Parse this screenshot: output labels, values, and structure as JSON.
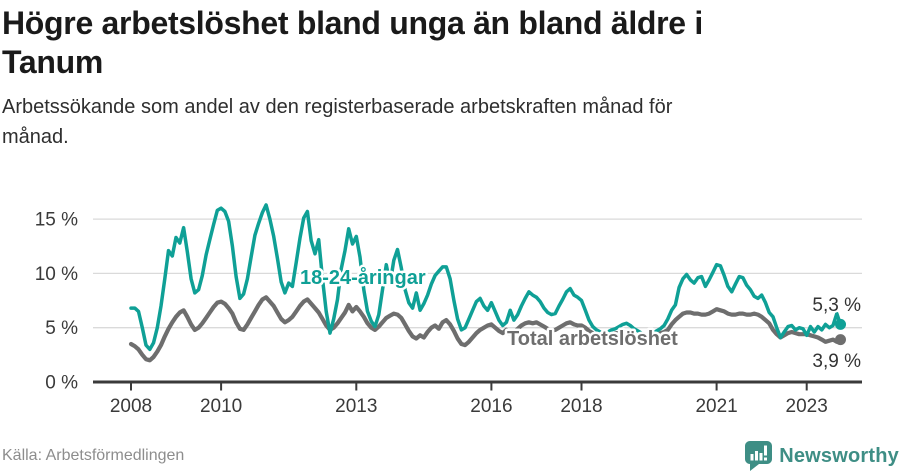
{
  "colors": {
    "young": "#0fa096",
    "total": "#6e6e6e",
    "grid": "#dadada",
    "axis": "#3a3a3a",
    "end_label_text": "#333333",
    "title_text": "#1a1a1a",
    "subtitle_text": "#2e2e2e",
    "source_text": "#8d8d8d",
    "brand": "#3e8e85"
  },
  "footer": {
    "source": "Källa: Arbetsförmedlingen",
    "brand": "Newsworthy",
    "brand_icon": "newsworthy-chart-bubble-icon"
  },
  "chart_data": {
    "type": "line",
    "title": "Högre arbetslöshet bland unga än bland äldre i Tanum",
    "title_lines": [
      "Högre arbetslöshet bland unga än bland äldre i",
      "Tanum"
    ],
    "subtitle": "Arbetssökande som andel av den registerbaserade arbetskraften månad för månad.",
    "subtitle_lines": [
      "Arbetssökande som andel av den registerbaserade arbetskraften månad för",
      "månad."
    ],
    "x_unit": "month",
    "x_start": {
      "year": 2008,
      "month": 1
    },
    "x_end": {
      "year": 2023,
      "month": 10
    },
    "xticks": [
      2008,
      2010,
      2013,
      2016,
      2018,
      2021,
      2023
    ],
    "yticks": [
      0,
      5,
      10,
      15
    ],
    "ytick_suffix": " %",
    "ylim": [
      0,
      17
    ],
    "grid": "horizontal-only",
    "legend_position": "inline-labels",
    "series": [
      {
        "name": "18-24-åringar",
        "color": "#0fa096",
        "end_label": "5,3 %",
        "last_value": 5.3,
        "values": [
          6.8,
          6.8,
          6.5,
          5.0,
          3.4,
          3.0,
          3.6,
          5.0,
          7.0,
          9.5,
          12.1,
          11.6,
          13.3,
          12.8,
          14.2,
          12.0,
          9.5,
          8.2,
          8.5,
          9.8,
          11.7,
          13.1,
          14.5,
          15.8,
          16.0,
          15.7,
          14.8,
          12.5,
          9.7,
          7.7,
          8.1,
          9.5,
          11.5,
          13.5,
          14.6,
          15.6,
          16.3,
          15.0,
          13.4,
          11.4,
          9.2,
          8.2,
          9.1,
          8.8,
          11.0,
          13.2,
          15.1,
          15.7,
          13.0,
          11.8,
          13.1,
          9.5,
          6.5,
          4.5,
          5.8,
          7.6,
          10.4,
          12.1,
          14.1,
          12.7,
          13.4,
          11.5,
          8.5,
          6.5,
          5.6,
          5.1,
          6.2,
          8.5,
          10.8,
          9.0,
          11.2,
          12.2,
          10.5,
          8.5,
          7.3,
          6.8,
          8.2,
          6.6,
          7.2,
          8.0,
          9.0,
          9.8,
          10.2,
          10.6,
          10.6,
          9.5,
          7.5,
          5.8,
          4.8,
          5.0,
          5.8,
          6.6,
          7.4,
          7.7,
          7.0,
          6.6,
          7.3,
          6.5,
          5.7,
          5.2,
          5.5,
          6.6,
          5.7,
          6.2,
          7.0,
          7.7,
          8.3,
          8.0,
          7.8,
          7.4,
          6.8,
          6.4,
          6.2,
          6.3,
          7.0,
          7.6,
          8.3,
          8.6,
          8.0,
          7.8,
          7.5,
          6.6,
          5.7,
          5.1,
          4.8,
          4.6,
          4.5,
          4.6,
          4.8,
          4.9,
          5.1,
          5.3,
          5.4,
          5.2,
          4.9,
          4.7,
          4.5,
          4.3,
          4.4,
          4.5,
          4.7,
          4.9,
          5.2,
          5.8,
          6.6,
          7.1,
          8.7,
          9.5,
          9.9,
          9.4,
          9.1,
          9.6,
          9.7,
          8.8,
          9.4,
          10.1,
          10.8,
          10.7,
          9.8,
          8.8,
          8.3,
          9.0,
          9.7,
          9.6,
          8.9,
          8.5,
          7.9,
          7.7,
          8.0,
          7.3,
          6.4,
          6.0,
          5.0,
          4.1,
          4.6,
          5.1,
          5.2,
          4.8,
          5.0,
          4.9,
          4.3,
          5.1,
          4.6,
          5.1,
          4.8,
          5.3,
          5.0,
          5.2,
          6.3,
          5.3
        ]
      },
      {
        "name": "Total arbetslöshet",
        "color": "#6e6e6e",
        "end_label": "3,9 %",
        "last_value": 3.9,
        "values": [
          3.5,
          3.3,
          3.0,
          2.5,
          2.1,
          2.0,
          2.3,
          2.8,
          3.4,
          4.2,
          4.9,
          5.5,
          6.0,
          6.4,
          6.6,
          6.0,
          5.3,
          4.8,
          5.0,
          5.4,
          5.9,
          6.4,
          6.9,
          7.3,
          7.4,
          7.2,
          6.8,
          6.3,
          5.5,
          4.9,
          4.8,
          5.3,
          5.9,
          6.5,
          7.1,
          7.6,
          7.8,
          7.4,
          7.0,
          6.4,
          5.8,
          5.5,
          5.7,
          6.0,
          6.5,
          7.0,
          7.4,
          7.6,
          7.2,
          6.8,
          6.4,
          5.8,
          5.2,
          4.8,
          5.0,
          5.4,
          5.9,
          6.4,
          7.1,
          6.5,
          6.9,
          6.5,
          6.0,
          5.4,
          5.0,
          4.8,
          5.1,
          5.5,
          5.9,
          6.1,
          6.3,
          6.2,
          5.9,
          5.3,
          4.7,
          4.2,
          4.0,
          4.3,
          4.1,
          4.6,
          5.0,
          5.2,
          4.9,
          5.5,
          5.7,
          5.3,
          4.7,
          4.0,
          3.5,
          3.4,
          3.7,
          4.1,
          4.5,
          4.8,
          5.0,
          5.2,
          5.3,
          5.0,
          4.7,
          4.5,
          4.8,
          4.4,
          4.6,
          4.9,
          5.2,
          5.4,
          5.5,
          5.4,
          5.5,
          5.3,
          5.1,
          4.9,
          4.7,
          4.8,
          5.0,
          5.2,
          5.4,
          5.5,
          5.3,
          5.2,
          5.2,
          5.0,
          4.7,
          4.5,
          4.3,
          4.2,
          4.2,
          4.3,
          4.4,
          4.5,
          4.5,
          4.5,
          4.5,
          4.4,
          4.3,
          4.2,
          4.1,
          4.0,
          4.1,
          4.2,
          4.3,
          4.5,
          4.6,
          4.8,
          5.3,
          5.7,
          6.0,
          6.3,
          6.4,
          6.4,
          6.3,
          6.3,
          6.2,
          6.2,
          6.3,
          6.5,
          6.7,
          6.6,
          6.5,
          6.3,
          6.2,
          6.2,
          6.3,
          6.3,
          6.2,
          6.2,
          6.3,
          6.2,
          6.0,
          5.7,
          5.4,
          4.8,
          4.4,
          4.1,
          4.3,
          4.5,
          4.6,
          4.5,
          4.4,
          4.4,
          4.4,
          4.3,
          4.2,
          4.1,
          3.9,
          3.7,
          3.8,
          3.9,
          3.7,
          3.9
        ]
      }
    ]
  }
}
